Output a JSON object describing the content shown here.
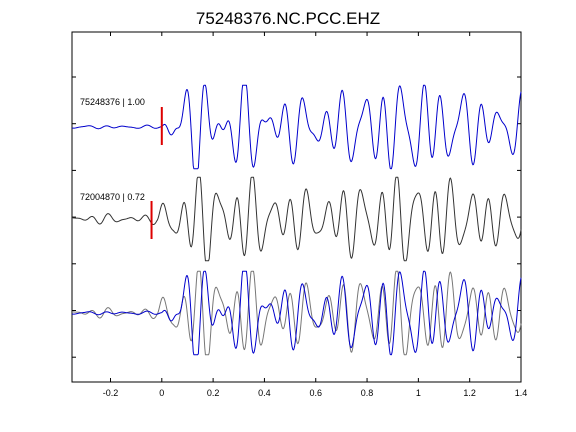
{
  "chart_data": {
    "type": "line",
    "title": "75248376.NC.PCC.EHZ",
    "xlabel": "",
    "ylabel": "",
    "xlim": [
      -0.35,
      1.4
    ],
    "x_ticks": [
      -0.2,
      0,
      0.2,
      0.4,
      0.6,
      0.8,
      1,
      1.2,
      1.4
    ],
    "x_tick_labels": [
      "-0.2",
      "0",
      "0.2",
      "0.4",
      "0.6",
      "0.8",
      "1",
      "1.2",
      "1.4"
    ],
    "y_tick_count": 7,
    "grid": false,
    "colors": {
      "primary": "#0000cc",
      "secondary": "#333333",
      "overlay_secondary": "#777777",
      "pick": "#dd0000"
    },
    "traces": [
      {
        "label": "75248376 | 1.00",
        "event_id": "75248376",
        "correlation": 1.0,
        "color": "#0000cc",
        "pick_time": 0.0,
        "onset_time": 0.0,
        "pre_amplitude": 0.04,
        "components": [
          {
            "f": 13.0,
            "a": 0.62,
            "p": 0.3
          },
          {
            "f": 18.5,
            "a": 0.38,
            "p": 1.7
          },
          {
            "f": 8.2,
            "a": 0.33,
            "p": 4.1
          }
        ]
      },
      {
        "label": "72004870 | 0.72",
        "event_id": "72004870",
        "correlation": 0.72,
        "color": "#333333",
        "pick_time": -0.04,
        "onset_time": -0.02,
        "pre_amplitude": 0.12,
        "components": [
          {
            "f": 14.2,
            "a": 0.62,
            "p": 1.1
          },
          {
            "f": 19.5,
            "a": 0.34,
            "p": 2.6
          },
          {
            "f": 9.1,
            "a": 0.3,
            "p": 0.7
          }
        ]
      }
    ]
  }
}
